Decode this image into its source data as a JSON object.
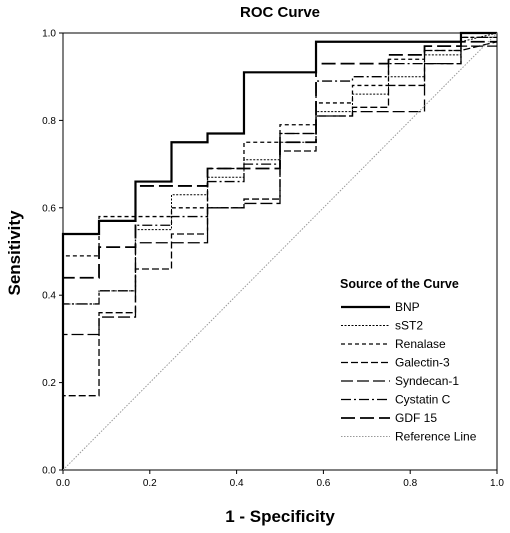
{
  "chart_data": {
    "type": "line",
    "title": "ROC Curve",
    "xlabel": "1 - Specificity",
    "ylabel": "Sensitivity",
    "xlim": [
      0,
      1
    ],
    "ylim": [
      0,
      1
    ],
    "x_ticks": [
      "0.0",
      "0.2",
      "0.4",
      "0.6",
      "0.8",
      "1.0"
    ],
    "y_ticks": [
      "0.0",
      "0.2",
      "0.4",
      "0.6",
      "0.8",
      "1.0"
    ],
    "grid": false,
    "legend": {
      "title": "Source of the Curve",
      "placement": "lower-right"
    },
    "series": [
      {
        "name": "BNP",
        "style": "solid-thick",
        "color": "#000000",
        "points": [
          [
            0,
            0
          ],
          [
            0,
            0.54
          ],
          [
            0.083,
            0.54
          ],
          [
            0.083,
            0.57
          ],
          [
            0.167,
            0.57
          ],
          [
            0.167,
            0.66
          ],
          [
            0.25,
            0.66
          ],
          [
            0.25,
            0.75
          ],
          [
            0.333,
            0.75
          ],
          [
            0.333,
            0.77
          ],
          [
            0.417,
            0.77
          ],
          [
            0.417,
            0.91
          ],
          [
            0.583,
            0.91
          ],
          [
            0.583,
            0.98
          ],
          [
            0.917,
            0.98
          ],
          [
            0.917,
            1.0
          ],
          [
            1,
            1.0
          ]
        ]
      },
      {
        "name": "sST2",
        "style": "fine-dot",
        "color": "#000000",
        "points": [
          [
            0,
            0
          ],
          [
            0,
            0.38
          ],
          [
            0.083,
            0.38
          ],
          [
            0.083,
            0.41
          ],
          [
            0.167,
            0.41
          ],
          [
            0.167,
            0.55
          ],
          [
            0.25,
            0.55
          ],
          [
            0.25,
            0.63
          ],
          [
            0.333,
            0.63
          ],
          [
            0.333,
            0.67
          ],
          [
            0.417,
            0.67
          ],
          [
            0.417,
            0.71
          ],
          [
            0.5,
            0.71
          ],
          [
            0.5,
            0.75
          ],
          [
            0.583,
            0.75
          ],
          [
            0.583,
            0.82
          ],
          [
            0.667,
            0.82
          ],
          [
            0.667,
            0.86
          ],
          [
            0.75,
            0.86
          ],
          [
            0.75,
            0.9
          ],
          [
            0.833,
            0.9
          ],
          [
            0.833,
            0.95
          ],
          [
            0.917,
            0.95
          ],
          [
            0.917,
            0.98
          ],
          [
            1,
            1.0
          ]
        ]
      },
      {
        "name": "Renalase",
        "style": "short-dash",
        "color": "#000000",
        "points": [
          [
            0,
            0
          ],
          [
            0,
            0.49
          ],
          [
            0.083,
            0.49
          ],
          [
            0.083,
            0.58
          ],
          [
            0.167,
            0.58
          ],
          [
            0.167,
            0.58
          ],
          [
            0.25,
            0.58
          ],
          [
            0.25,
            0.6
          ],
          [
            0.333,
            0.6
          ],
          [
            0.333,
            0.69
          ],
          [
            0.417,
            0.69
          ],
          [
            0.417,
            0.75
          ],
          [
            0.5,
            0.75
          ],
          [
            0.5,
            0.79
          ],
          [
            0.583,
            0.79
          ],
          [
            0.583,
            0.84
          ],
          [
            0.667,
            0.84
          ],
          [
            0.667,
            0.88
          ],
          [
            0.75,
            0.88
          ],
          [
            0.75,
            0.94
          ],
          [
            0.833,
            0.94
          ],
          [
            0.833,
            0.96
          ],
          [
            0.917,
            0.96
          ],
          [
            0.917,
            0.99
          ],
          [
            1,
            0.99
          ]
        ]
      },
      {
        "name": "Galectin-3",
        "style": "medium-dash",
        "color": "#000000",
        "points": [
          [
            0,
            0
          ],
          [
            0,
            0.17
          ],
          [
            0.083,
            0.17
          ],
          [
            0.083,
            0.36
          ],
          [
            0.167,
            0.36
          ],
          [
            0.167,
            0.46
          ],
          [
            0.25,
            0.46
          ],
          [
            0.25,
            0.54
          ],
          [
            0.333,
            0.54
          ],
          [
            0.333,
            0.6
          ],
          [
            0.417,
            0.6
          ],
          [
            0.417,
            0.62
          ],
          [
            0.5,
            0.62
          ],
          [
            0.5,
            0.73
          ],
          [
            0.583,
            0.73
          ],
          [
            0.583,
            0.81
          ],
          [
            0.667,
            0.81
          ],
          [
            0.667,
            0.83
          ],
          [
            0.75,
            0.83
          ],
          [
            0.75,
            0.88
          ],
          [
            0.833,
            0.88
          ],
          [
            0.833,
            0.93
          ],
          [
            0.917,
            0.93
          ],
          [
            0.917,
            0.96
          ],
          [
            1,
            0.98
          ]
        ]
      },
      {
        "name": "Syndecan-1",
        "style": "long-dash",
        "color": "#000000",
        "points": [
          [
            0,
            0
          ],
          [
            0,
            0.31
          ],
          [
            0.083,
            0.31
          ],
          [
            0.083,
            0.35
          ],
          [
            0.167,
            0.35
          ],
          [
            0.167,
            0.52
          ],
          [
            0.25,
            0.52
          ],
          [
            0.25,
            0.52
          ],
          [
            0.333,
            0.52
          ],
          [
            0.333,
            0.6
          ],
          [
            0.417,
            0.6
          ],
          [
            0.417,
            0.61
          ],
          [
            0.5,
            0.61
          ],
          [
            0.5,
            0.77
          ],
          [
            0.583,
            0.77
          ],
          [
            0.583,
            0.81
          ],
          [
            0.667,
            0.81
          ],
          [
            0.667,
            0.82
          ],
          [
            0.75,
            0.82
          ],
          [
            0.75,
            0.82
          ],
          [
            0.833,
            0.82
          ],
          [
            0.833,
            0.93
          ],
          [
            0.917,
            0.93
          ],
          [
            0.917,
            0.97
          ],
          [
            1,
            0.97
          ]
        ]
      },
      {
        "name": "Cystatin C",
        "style": "dash-dot",
        "color": "#000000",
        "points": [
          [
            0,
            0
          ],
          [
            0,
            0.38
          ],
          [
            0.083,
            0.38
          ],
          [
            0.083,
            0.41
          ],
          [
            0.167,
            0.41
          ],
          [
            0.167,
            0.56
          ],
          [
            0.25,
            0.56
          ],
          [
            0.25,
            0.58
          ],
          [
            0.333,
            0.58
          ],
          [
            0.333,
            0.66
          ],
          [
            0.417,
            0.66
          ],
          [
            0.417,
            0.7
          ],
          [
            0.5,
            0.7
          ],
          [
            0.5,
            0.77
          ],
          [
            0.583,
            0.77
          ],
          [
            0.583,
            0.89
          ],
          [
            0.667,
            0.89
          ],
          [
            0.667,
            0.9
          ],
          [
            0.75,
            0.9
          ],
          [
            0.75,
            0.93
          ],
          [
            0.833,
            0.93
          ],
          [
            0.833,
            0.96
          ],
          [
            0.917,
            0.96
          ],
          [
            0.917,
            0.99
          ],
          [
            1,
            0.99
          ]
        ]
      },
      {
        "name": "GDF 15",
        "style": "long-dash-thick",
        "color": "#000000",
        "points": [
          [
            0,
            0
          ],
          [
            0,
            0.44
          ],
          [
            0.083,
            0.44
          ],
          [
            0.083,
            0.51
          ],
          [
            0.167,
            0.51
          ],
          [
            0.167,
            0.65
          ],
          [
            0.25,
            0.65
          ],
          [
            0.25,
            0.65
          ],
          [
            0.333,
            0.65
          ],
          [
            0.333,
            0.69
          ],
          [
            0.417,
            0.69
          ],
          [
            0.417,
            0.69
          ],
          [
            0.5,
            0.69
          ],
          [
            0.5,
            0.75
          ],
          [
            0.583,
            0.75
          ],
          [
            0.583,
            0.93
          ],
          [
            0.667,
            0.93
          ],
          [
            0.667,
            0.93
          ],
          [
            0.75,
            0.93
          ],
          [
            0.75,
            0.95
          ],
          [
            0.833,
            0.95
          ],
          [
            0.833,
            0.97
          ],
          [
            0.917,
            0.97
          ],
          [
            0.917,
            0.98
          ],
          [
            1,
            0.98
          ]
        ]
      },
      {
        "name": "Reference Line",
        "style": "reference",
        "color": "#999999",
        "points": [
          [
            0,
            0
          ],
          [
            1,
            1
          ]
        ]
      }
    ]
  }
}
